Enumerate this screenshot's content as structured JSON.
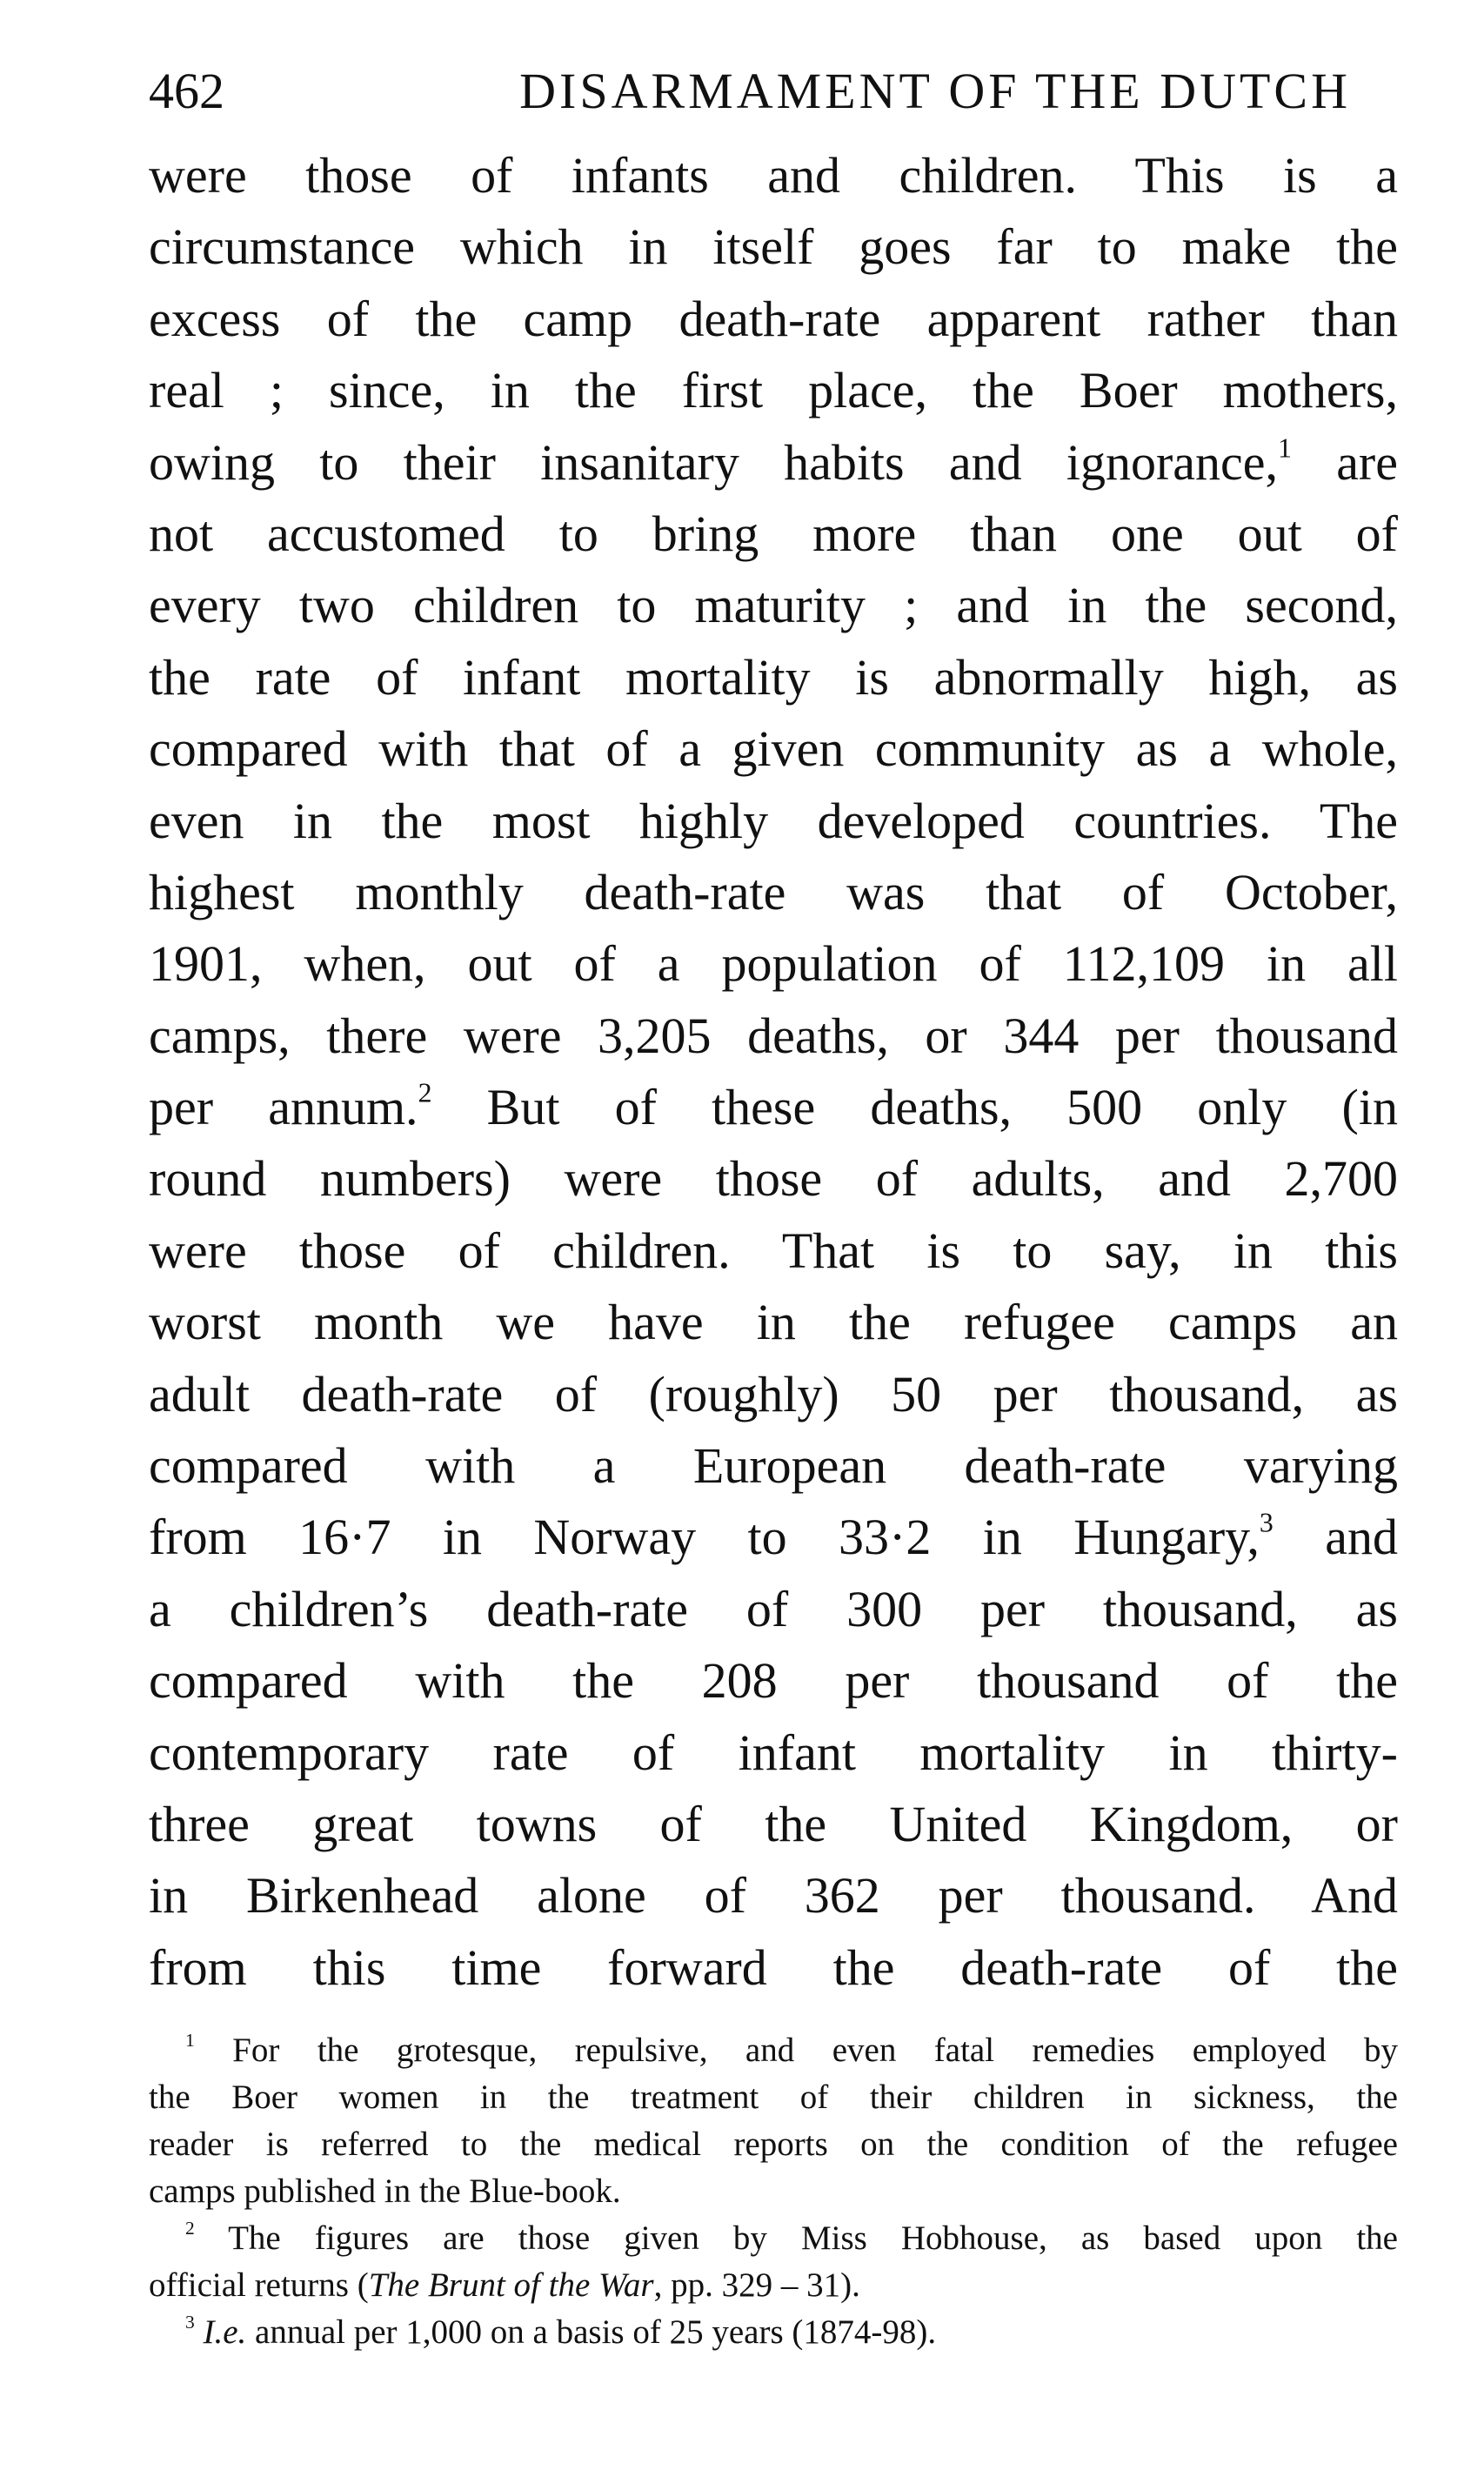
{
  "header": {
    "page_number": "462",
    "running_title": "DISARMAMENT OF THE DUTCH"
  },
  "body_lines": [
    [
      "were those of infants and children.  This is a"
    ],
    [
      "circumstance which in itself goes far to make the"
    ],
    [
      "excess of the camp death-rate apparent rather than"
    ],
    [
      "real ; since, in the first place, the Boer mothers,"
    ],
    [
      "owing to their insanitary habits and ignorance,",
      {
        "sup": "1"
      },
      " are"
    ],
    [
      "not accustomed to bring more than one out of"
    ],
    [
      "every two children to maturity ; and in the second,"
    ],
    [
      "the rate of infant mortality is abnormally high, as"
    ],
    [
      "compared with that of a given community as a whole,"
    ],
    [
      "even in the most highly developed countries.  The"
    ],
    [
      "highest monthly death-rate was that of October,"
    ],
    [
      "1901, when, out of a population of 112,109 in all"
    ],
    [
      "camps, there were 3,205 deaths, or 344 per thousand"
    ],
    [
      "per annum.",
      {
        "sup": "2"
      },
      "  But of these deaths, 500 only (in"
    ],
    [
      "round numbers) were those of adults, and 2,700"
    ],
    [
      "were those of children.  That is to say, in this"
    ],
    [
      "worst month we have in the refugee camps an"
    ],
    [
      "adult death-rate of (roughly) 50 per thousand, as"
    ],
    [
      "compared with a European death-rate varying"
    ],
    [
      "from 16·7 in Norway to 33·2 in Hungary,",
      {
        "sup": "3"
      },
      " and"
    ],
    [
      "a children’s death-rate of 300 per thousand, as"
    ],
    [
      "compared with the 208 per thousand of the"
    ],
    [
      "contemporary rate of infant mortality in thirty-"
    ],
    [
      "three great towns of the United Kingdom, or"
    ],
    [
      "in Birkenhead alone of 362 per thousand.  And"
    ],
    [
      "from this time forward the death-rate of the"
    ]
  ],
  "footnotes": [
    {
      "first": true,
      "last": false,
      "segs": [
        {
          "sup": "1"
        },
        " For the grotesque, repulsive, and even fatal remedies employed by"
      ]
    },
    {
      "first": false,
      "last": false,
      "segs": [
        "the Boer women in the treatment of their children in sickness, the"
      ]
    },
    {
      "first": false,
      "last": false,
      "segs": [
        "reader is referred to the medical reports on the condition of the refugee"
      ]
    },
    {
      "first": false,
      "last": true,
      "segs": [
        "camps published in the Blue-book."
      ]
    },
    {
      "first": true,
      "last": false,
      "segs": [
        {
          "sup": "2"
        },
        " The figures are those given by Miss Hobhouse, as based upon the"
      ]
    },
    {
      "first": false,
      "last": true,
      "segs": [
        "official returns (",
        {
          "i": "The Brunt of the War"
        },
        ", pp. 329 – 31)."
      ]
    },
    {
      "first": true,
      "last": true,
      "segs": [
        {
          "sup": "3"
        },
        " ",
        {
          "i": "I.e."
        },
        " annual per 1,000 on a basis of 25 years (1874-98)."
      ]
    }
  ]
}
